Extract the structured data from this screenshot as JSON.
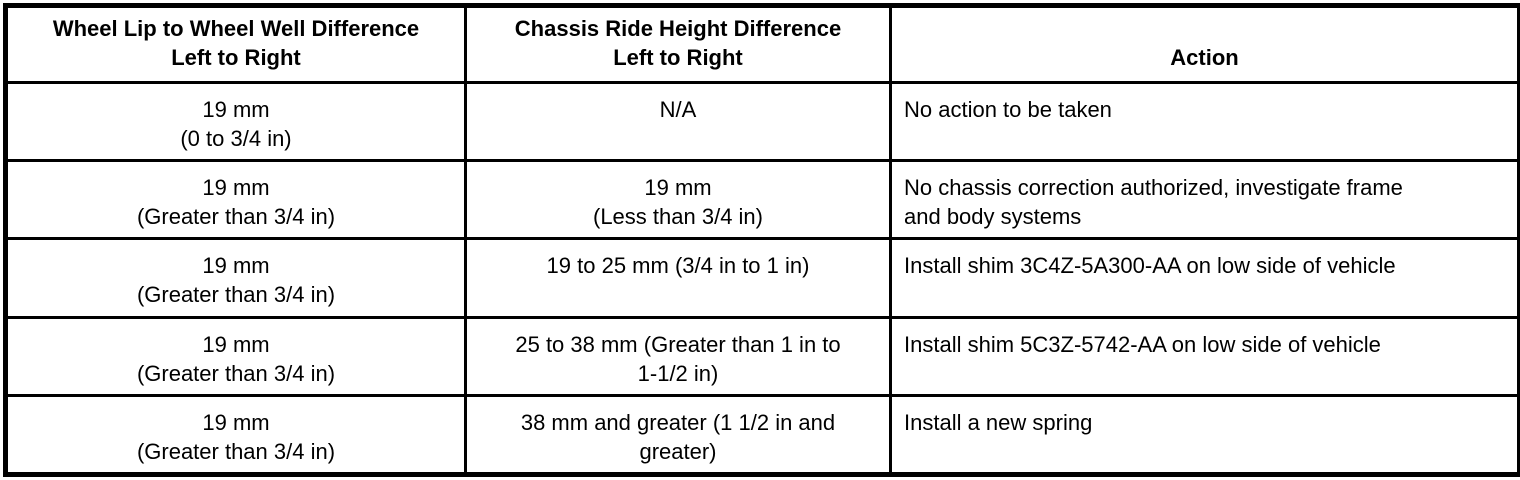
{
  "table": {
    "headers": [
      {
        "lines": [
          "Wheel Lip to Wheel Well Difference",
          "Left to Right"
        ]
      },
      {
        "lines": [
          "Chassis Ride Height Difference",
          "Left to Right"
        ]
      },
      {
        "lines": [
          "Action"
        ]
      }
    ],
    "rows": [
      {
        "cells": [
          [
            "19 mm",
            "(0 to 3/4 in)"
          ],
          [
            "N/A"
          ],
          [
            "No action to be taken"
          ]
        ]
      },
      {
        "cells": [
          [
            "19 mm",
            "(Greater than 3/4 in)"
          ],
          [
            "19 mm",
            "(Less than 3/4 in)"
          ],
          [
            "No chassis correction authorized, investigate frame",
            "and body systems"
          ]
        ]
      },
      {
        "cells": [
          [
            "19 mm",
            "(Greater than 3/4 in)"
          ],
          [
            "19 to 25 mm (3/4 in to 1 in)"
          ],
          [
            "Install shim 3C4Z-5A300-AA on low side of vehicle"
          ]
        ]
      },
      {
        "cells": [
          [
            "19 mm",
            "(Greater than 3/4 in)"
          ],
          [
            "25 to 38 mm (Greater than 1 in to",
            "1-1/2 in)"
          ],
          [
            "Install shim 5C3Z-5742-AA on low side of vehicle"
          ]
        ]
      },
      {
        "cells": [
          [
            "19 mm",
            "(Greater than 3/4 in)"
          ],
          [
            "38 mm and greater (1 1/2 in and",
            "greater)"
          ],
          [
            "Install a new spring"
          ]
        ]
      }
    ],
    "border_color": "#000000",
    "background_color": "#ffffff"
  }
}
